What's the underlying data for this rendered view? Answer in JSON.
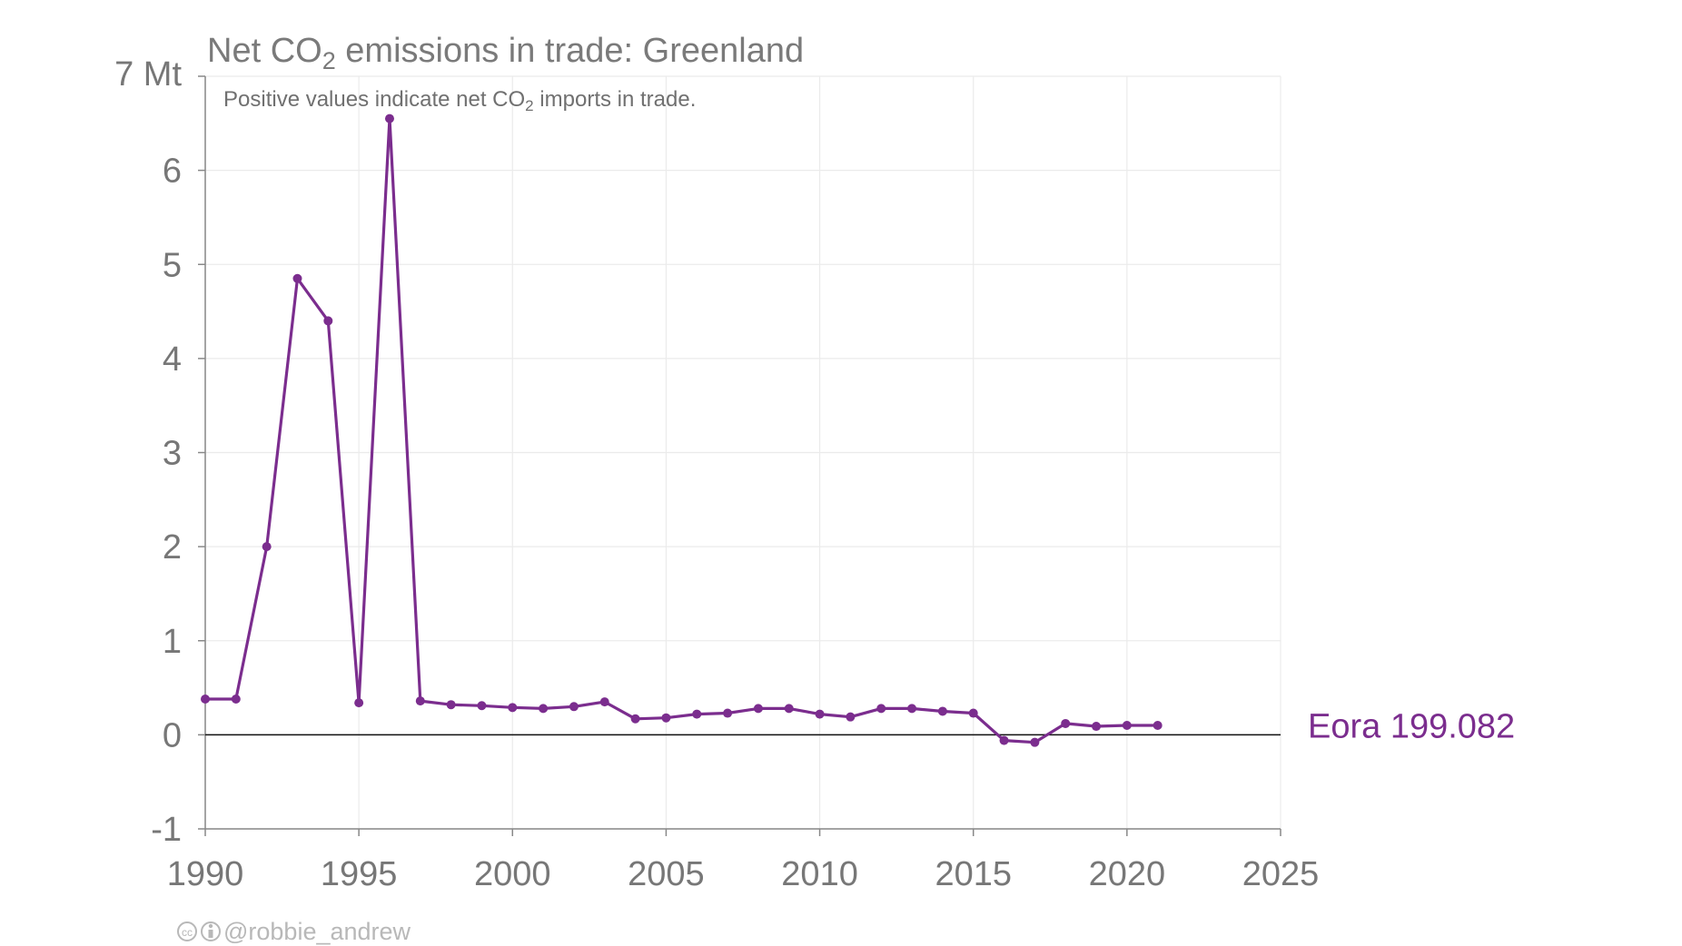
{
  "chart_data": {
    "type": "line",
    "title": {
      "main": "Net CO",
      "sub": "2",
      "rest": " emissions in trade: Greenland"
    },
    "subtitle": {
      "main": "Positive values indicate net CO",
      "sub": "2",
      "rest": " imports in trade."
    },
    "y_unit_label": "7 Mt",
    "xlim": [
      1990,
      2025
    ],
    "ylim": [
      -1,
      7
    ],
    "x_ticks": [
      "1990",
      "1995",
      "2000",
      "2005",
      "2010",
      "2015",
      "2020",
      "2025"
    ],
    "y_ticks": [
      "-1",
      "0",
      "1",
      "2",
      "3",
      "4",
      "5",
      "6"
    ],
    "grid": true,
    "series": [
      {
        "name": "Eora 199.082",
        "color": "#7b2d8e",
        "x": [
          1990,
          1991,
          1992,
          1993,
          1994,
          1995,
          1996,
          1997,
          1998,
          1999,
          2000,
          2001,
          2002,
          2003,
          2004,
          2005,
          2006,
          2007,
          2008,
          2009,
          2010,
          2011,
          2012,
          2013,
          2014,
          2015,
          2016,
          2017,
          2018,
          2019,
          2020,
          2021
        ],
        "y": [
          0.38,
          0.38,
          2.0,
          4.85,
          4.4,
          0.34,
          6.55,
          0.36,
          0.32,
          0.31,
          0.29,
          0.28,
          0.3,
          0.35,
          0.17,
          0.18,
          0.22,
          0.23,
          0.28,
          0.28,
          0.22,
          0.19,
          0.28,
          0.28,
          0.25,
          0.23,
          -0.06,
          -0.08,
          0.12,
          0.09,
          0.1,
          0.1
        ]
      }
    ]
  },
  "credit": {
    "icons": "cc-by-icons",
    "handle": "@robbie_andrew"
  }
}
